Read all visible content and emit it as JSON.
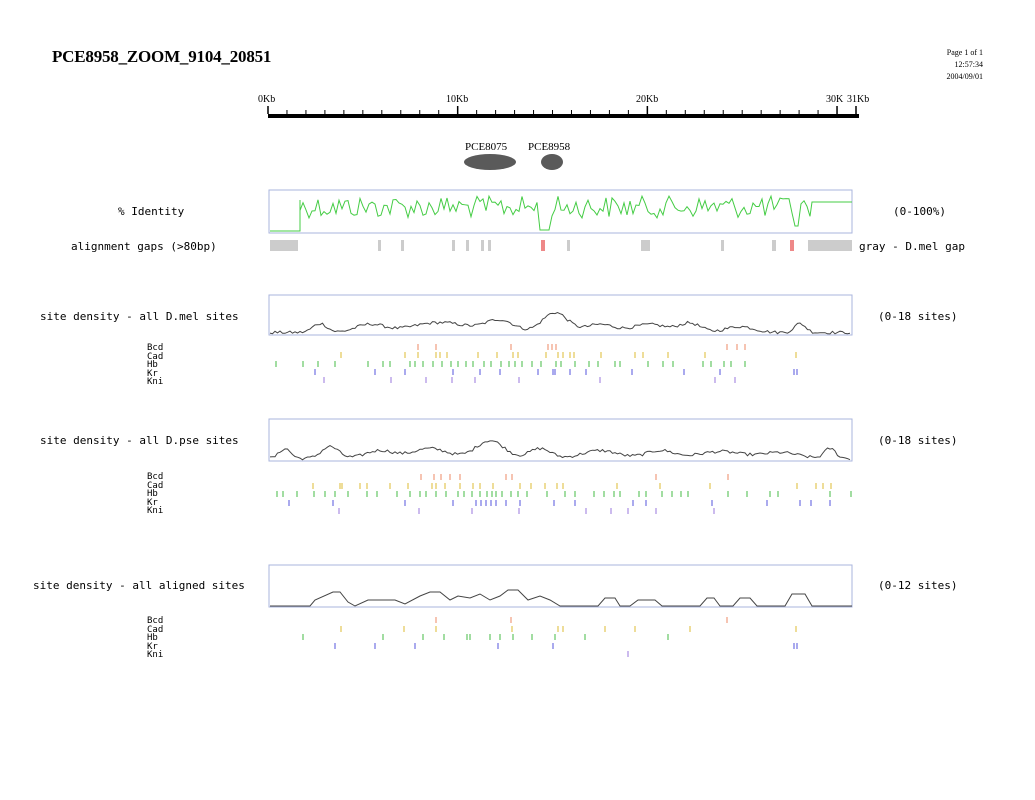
{
  "title": "PCE8958_ZOOM_9104_20851",
  "meta": {
    "page": "Page 1 of 1",
    "time": "12:57:34",
    "date": "2004/09/01"
  },
  "ruler": {
    "ticks": [
      "0Kb",
      "10Kb",
      "20Kb",
      "30K",
      "31Kb"
    ]
  },
  "genes": [
    "PCE8075",
    "PCE8958"
  ],
  "identity": {
    "label": "% Identity",
    "range": "(0-100%)"
  },
  "gaps": {
    "label": "alignment gaps (>80bp)",
    "legend": "gray - D.mel gap"
  },
  "tracks": [
    {
      "label": "site density - all D.mel sites",
      "range": "(0-18 sites)"
    },
    {
      "label": "site density - all D.pse sites",
      "range": "(0-18 sites)"
    },
    {
      "label": "site density - all aligned sites",
      "range": "(0-12 sites)"
    }
  ],
  "factors": [
    "Bcd",
    "Cad",
    "Hb",
    "Kr",
    "Kni"
  ],
  "colors": {
    "Bcd": "#ee8866",
    "Cad": "#ddbb33",
    "Hb": "#44bb44",
    "Kr": "#5555dd",
    "Kni": "#9977dd",
    "identity": "#44cc44",
    "gap": "#cccccc",
    "gap_red": "#ee8888",
    "frame": "#aab4dd"
  }
}
